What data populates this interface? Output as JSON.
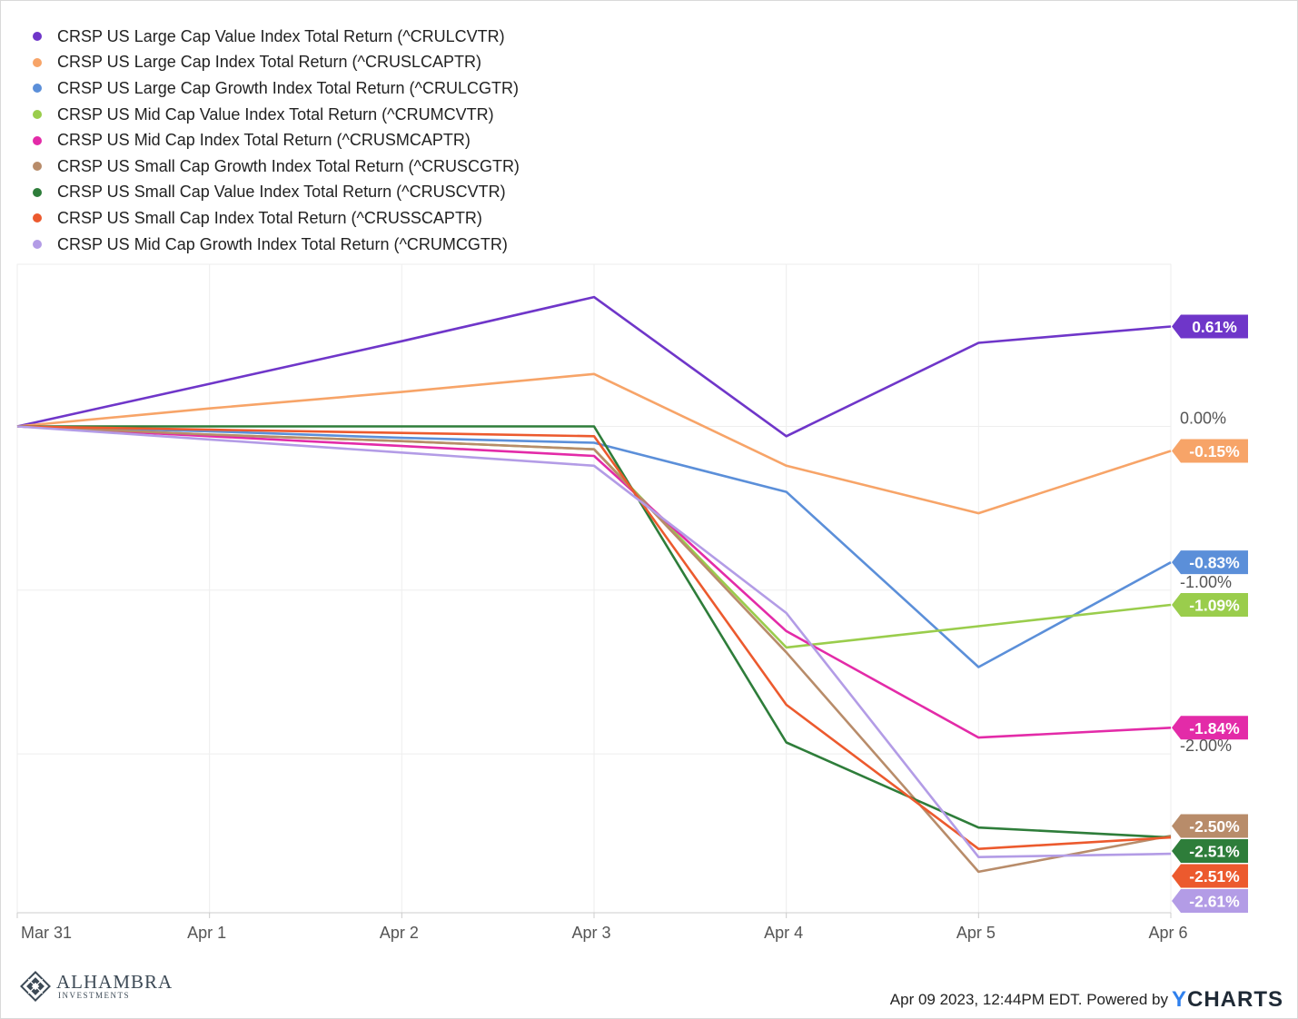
{
  "chart_data": {
    "type": "line",
    "x": [
      "Mar 31",
      "Apr 1",
      "Apr 2",
      "Apr 3",
      "Apr 4",
      "Apr 5",
      "Apr 6"
    ],
    "y_ticks": [
      "0.00%",
      "-1.00%",
      "-2.00%"
    ],
    "ylim": [
      -2.97,
      0.99
    ],
    "grid": true,
    "legend_position": "top-left",
    "series": [
      {
        "name": "CRSP US Large Cap Value Index Total Return (^CRULCVTR)",
        "color": "#6f36c9",
        "values": [
          0,
          0.26,
          0.52,
          0.79,
          -0.06,
          0.51,
          0.61
        ],
        "end_label": "0.61%"
      },
      {
        "name": "CRSP US Large Cap Index Total Return (^CRUSLCAPTR)",
        "color": "#f7a468",
        "values": [
          0,
          0.11,
          0.21,
          0.32,
          -0.24,
          -0.53,
          -0.15
        ],
        "end_label": "-0.15%"
      },
      {
        "name": "CRSP US Large Cap Growth Index Total Return (^CRULCGTR)",
        "color": "#5b8fd9",
        "values": [
          0,
          -0.03,
          -0.07,
          -0.1,
          -0.4,
          -1.47,
          -0.83
        ],
        "end_label": "-0.83%"
      },
      {
        "name": "CRSP US Mid Cap Value Index Total Return (^CRUMCVTR)",
        "color": "#9acd4c",
        "values": [
          0,
          -0.05,
          -0.09,
          -0.14,
          -1.35,
          -1.22,
          -1.09
        ],
        "end_label": "-1.09%"
      },
      {
        "name": "CRSP US Mid Cap Index Total Return (^CRUSMCAPTR)",
        "color": "#e32ba8",
        "values": [
          0,
          -0.06,
          -0.12,
          -0.18,
          -1.25,
          -1.9,
          -1.84
        ],
        "end_label": "-1.84%"
      },
      {
        "name": "CRSP US Small Cap Growth Index Total Return (^CRUSCGTR)",
        "color": "#b88c6a",
        "values": [
          0,
          -0.05,
          -0.09,
          -0.14,
          -1.38,
          -2.72,
          -2.5
        ],
        "end_label": "-2.50%"
      },
      {
        "name": "CRSP US Small Cap Value Index Total Return (^CRUSCVTR)",
        "color": "#2e7d3a",
        "values": [
          0,
          0,
          0,
          0,
          -1.93,
          -2.45,
          -2.51
        ],
        "end_label": "-2.51%"
      },
      {
        "name": "CRSP US Small Cap Index Total Return (^CRUSSCAPTR)",
        "color": "#ec5a2e",
        "values": [
          0,
          -0.02,
          -0.04,
          -0.06,
          -1.7,
          -2.58,
          -2.51
        ],
        "end_label": "-2.51%"
      },
      {
        "name": "CRSP US Mid Cap Growth Index Total Return (^CRUMCGTR)",
        "color": "#b39ce6",
        "values": [
          0,
          -0.08,
          -0.16,
          -0.24,
          -1.14,
          -2.63,
          -2.61
        ],
        "end_label": "-2.61%"
      }
    ]
  },
  "footer": {
    "timestamp": "Apr 09 2023, 12:44PM EDT.  Powered by",
    "brand": "CHARTS",
    "brand_initial": "Y"
  },
  "logo": {
    "name": "ALHAMBRA",
    "sub": "INVESTMENTS"
  }
}
